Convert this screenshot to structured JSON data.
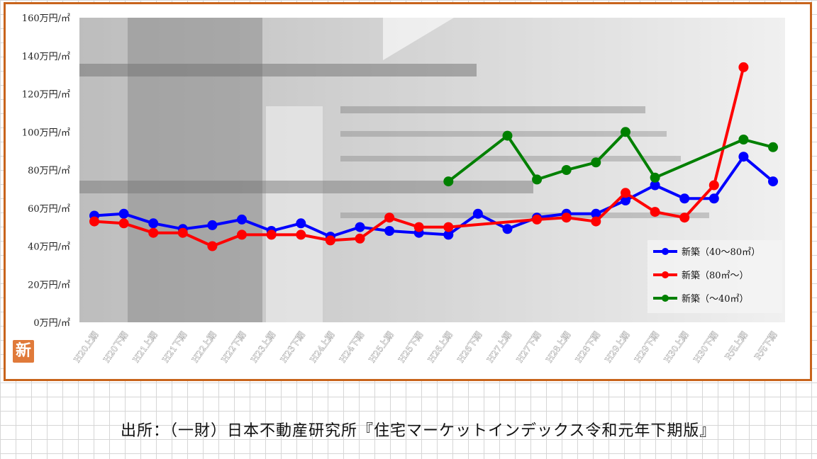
{
  "source_text": "出所：（一財）日本不動産研究所『住宅マーケットインデックス令和元年下期版』",
  "logo_text": "新",
  "chart_data": {
    "type": "line",
    "title": "",
    "xlabel": "",
    "ylabel": "",
    "ylim": [
      0,
      160
    ],
    "y_ticks": [
      {
        "value": 0,
        "label": "0万円/㎡"
      },
      {
        "value": 20,
        "label": "20万円/㎡"
      },
      {
        "value": 40,
        "label": "40万円/㎡"
      },
      {
        "value": 60,
        "label": "60万円/㎡"
      },
      {
        "value": 80,
        "label": "80万円/㎡"
      },
      {
        "value": 100,
        "label": "100万円/㎡"
      },
      {
        "value": 120,
        "label": "120万円/㎡"
      },
      {
        "value": 140,
        "label": "140万円/㎡"
      },
      {
        "value": 160,
        "label": "160万円/㎡"
      }
    ],
    "categories": [
      "H20上期",
      "H20下期",
      "H21上期",
      "H21下期",
      "H22上期",
      "H22下期",
      "H23上期",
      "H23下期",
      "H24上期",
      "H24下期",
      "H25上期",
      "H25下期",
      "H26上期",
      "H26下期",
      "H27上期",
      "H27下期",
      "H28上期",
      "H28下期",
      "H29上期",
      "H29下期",
      "H30上期",
      "H30下期",
      "R元上期",
      "R元下期"
    ],
    "grid": false,
    "legend_position": "bottom-right",
    "series": [
      {
        "name": "新築（40～80㎡）",
        "color": "#0000ff",
        "values": [
          56,
          57,
          52,
          49,
          51,
          54,
          48,
          52,
          45,
          50,
          48,
          47,
          46,
          57,
          49,
          55,
          57,
          57,
          64,
          72,
          65,
          65,
          87,
          74
        ]
      },
      {
        "name": "新築（80㎡～）",
        "color": "#ff0000",
        "values": [
          53,
          52,
          47,
          47,
          40,
          46,
          46,
          46,
          43,
          44,
          55,
          50,
          50,
          null,
          null,
          54,
          55,
          53,
          68,
          58,
          55,
          72,
          134,
          null
        ]
      },
      {
        "name": "新築（～40㎡）",
        "color": "#008000",
        "values": [
          null,
          null,
          null,
          null,
          null,
          null,
          null,
          null,
          null,
          null,
          null,
          null,
          74,
          null,
          98,
          75,
          80,
          84,
          100,
          76,
          null,
          null,
          96,
          92
        ]
      }
    ]
  }
}
